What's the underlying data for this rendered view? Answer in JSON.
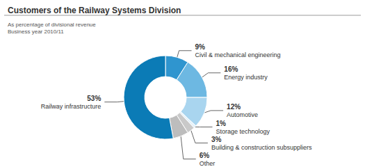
{
  "chart_data": {
    "type": "donut",
    "title": "Customers of the Railway Systems Division",
    "subtitle": "As percentage of divisional revenue\nBusiness year 2010/11",
    "categories": [
      "Civil & mechanical engineering",
      "Energy industry",
      "Automotive",
      "Storage technology",
      "Building & construction subsuppliers",
      "Other",
      "Railway infrastructure"
    ],
    "values": [
      9,
      16,
      12,
      1,
      3,
      6,
      53
    ],
    "value_labels": [
      "9%",
      "16%",
      "12%",
      "1%",
      "3%",
      "6%",
      "53%"
    ],
    "colors": [
      "#2f95cf",
      "#6db8e2",
      "#a9d5ef",
      "#e4f1f9",
      "#c9c9c9",
      "#bdbdbd",
      "#0b7bb6"
    ],
    "data_labels": true
  }
}
